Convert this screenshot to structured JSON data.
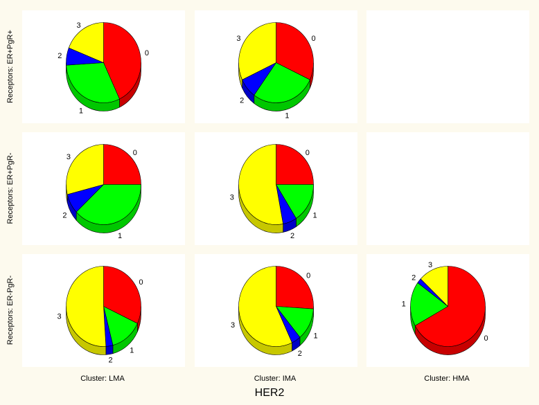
{
  "chart_data": {
    "type": "pie",
    "xlabel": "HER2",
    "col_labels": [
      "Cluster: LMA",
      "Cluster: IMA",
      "Cluster: HMA"
    ],
    "row_labels": [
      "Receptors: ER+PgR+",
      "Receptors: ER+PgR-",
      "Receptors: ER-PgR-"
    ],
    "legend": [
      "0",
      "1",
      "2",
      "3"
    ],
    "colors": [
      "#ff0000",
      "#00ff00",
      "#0000ff",
      "#ffff00"
    ],
    "panels": [
      {
        "row": 0,
        "col": 0,
        "categories": [
          "0",
          "1",
          "2",
          "3"
        ],
        "values": [
          43,
          31,
          7,
          19
        ]
      },
      {
        "row": 0,
        "col": 1,
        "categories": [
          "0",
          "1",
          "2",
          "3"
        ],
        "values": [
          32,
          28,
          8,
          32
        ]
      },
      {
        "row": 0,
        "col": 2,
        "categories": [],
        "values": []
      },
      {
        "row": 1,
        "col": 0,
        "categories": [
          "0",
          "1",
          "2",
          "3"
        ],
        "values": [
          25,
          38,
          8,
          29
        ]
      },
      {
        "row": 1,
        "col": 1,
        "categories": [
          "0",
          "1",
          "2",
          "3"
        ],
        "values": [
          25,
          16,
          6,
          53
        ]
      },
      {
        "row": 1,
        "col": 2,
        "categories": [],
        "values": []
      },
      {
        "row": 2,
        "col": 0,
        "categories": [
          "0",
          "1",
          "2",
          "3"
        ],
        "values": [
          32,
          14,
          3,
          51
        ]
      },
      {
        "row": 2,
        "col": 1,
        "categories": [
          "0",
          "1",
          "2",
          "3"
        ],
        "values": [
          26,
          13,
          4,
          57
        ]
      },
      {
        "row": 2,
        "col": 2,
        "categories": [
          "0",
          "1",
          "2",
          "3"
        ],
        "values": [
          67,
          18,
          2,
          13
        ]
      }
    ]
  }
}
